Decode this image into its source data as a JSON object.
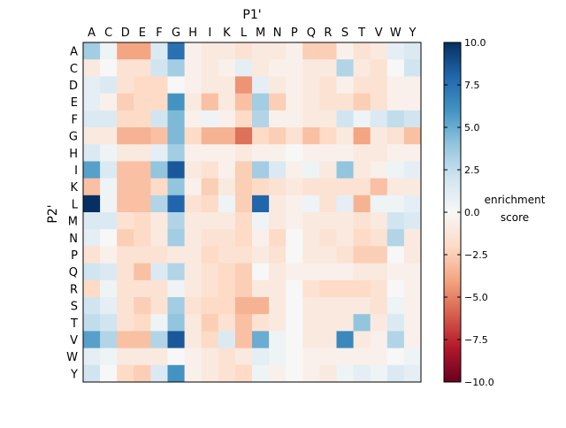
{
  "chart_data": {
    "type": "heatmap",
    "xlabel": "P1'",
    "ylabel": "P2'",
    "x_categories": [
      "A",
      "C",
      "D",
      "E",
      "F",
      "G",
      "H",
      "I",
      "K",
      "L",
      "M",
      "N",
      "P",
      "Q",
      "R",
      "S",
      "T",
      "V",
      "W",
      "Y"
    ],
    "y_categories": [
      "A",
      "C",
      "D",
      "E",
      "F",
      "G",
      "H",
      "I",
      "K",
      "L",
      "M",
      "N",
      "P",
      "Q",
      "R",
      "S",
      "T",
      "V",
      "W",
      "Y"
    ],
    "colorbar": {
      "label_line1": "enrichment",
      "label_line2": "score",
      "range": [
        -10.0,
        10.0
      ],
      "ticks": [
        "10.0",
        "7.5",
        "5.0",
        "2.5",
        "0.0",
        "−2.5",
        "−5.0",
        "−7.5",
        "−10.0"
      ],
      "tick_values": [
        10.0,
        7.5,
        5.0,
        2.5,
        0.0,
        -2.5,
        -5.0,
        -7.5,
        -10.0
      ],
      "colormap": "RdBu"
    },
    "values": [
      [
        3.5,
        0.5,
        -4.0,
        -4.0,
        1.5,
        7.5,
        -0.5,
        -1.0,
        -1.0,
        -1.5,
        -1.0,
        -1.0,
        -0.5,
        -2.5,
        -2.5,
        -0.5,
        -1.5,
        -1.0,
        1.0,
        1.5
      ],
      [
        -1.0,
        0,
        -1.5,
        -1.5,
        2.0,
        3.5,
        -0.5,
        -1.0,
        -0.5,
        1.0,
        -1.0,
        -0.5,
        -0.5,
        -1.0,
        -1.0,
        3.0,
        -1.0,
        -1.5,
        0,
        2.0
      ],
      [
        1.0,
        1.5,
        -1.5,
        -2.0,
        -2.0,
        0,
        -0.5,
        -1.0,
        -1.0,
        -4.5,
        1.0,
        -1.0,
        -0.5,
        -1.0,
        -1.5,
        -0.5,
        -1.5,
        -1.5,
        -0.5,
        -0.5
      ],
      [
        1.0,
        -0.5,
        -2.5,
        -2.0,
        -2.0,
        6.0,
        -1.0,
        -3.0,
        -1.0,
        -3.0,
        3.5,
        -2.5,
        -0.5,
        -1.0,
        -1.5,
        -1.5,
        -2.5,
        -1.5,
        -0.5,
        -0.5
      ],
      [
        1.5,
        1.5,
        -2.0,
        -2.0,
        2.0,
        4.5,
        -0.5,
        0.5,
        -0.5,
        -2.0,
        3.0,
        -0.5,
        -0.5,
        -1.0,
        -1.0,
        2.0,
        0.5,
        1.5,
        2.5,
        2.0
      ],
      [
        -1.0,
        -1.0,
        -3.5,
        -3.5,
        -3.0,
        4.5,
        -2.0,
        -3.5,
        -3.5,
        -5.5,
        -2.0,
        -2.5,
        -1.5,
        -3.0,
        -2.0,
        -1.0,
        -4.0,
        -1.0,
        -1.5,
        -3.0
      ],
      [
        1.5,
        0.5,
        -1.0,
        -1.0,
        1.0,
        3.5,
        -0.5,
        -0.5,
        -0.5,
        -1.0,
        -0.5,
        -0.5,
        0,
        -0.5,
        -0.5,
        -0.5,
        -1.0,
        -1.0,
        -0.5,
        -0.5
      ],
      [
        5.5,
        1.5,
        -3.0,
        -3.0,
        4.0,
        8.5,
        -1.0,
        -1.5,
        -0.5,
        -2.5,
        3.5,
        1.5,
        -0.5,
        0.5,
        -1.0,
        4.0,
        -1.0,
        -0.5,
        0.5,
        1.0
      ],
      [
        -3.0,
        0.5,
        -3.0,
        -3.0,
        -2.0,
        4.0,
        -0.5,
        -2.5,
        -1.0,
        -2.5,
        -2.0,
        -1.5,
        -1.0,
        -1.5,
        -1.5,
        -1.5,
        -1.5,
        -3.0,
        -1.0,
        -1.0
      ],
      [
        10.0,
        0.5,
        -3.0,
        -3.0,
        3.0,
        8.0,
        -1.5,
        -2.0,
        0.5,
        -2.5,
        8.0,
        -1.0,
        -0.5,
        0.5,
        -1.5,
        1.0,
        -3.5,
        0.5,
        0.5,
        1.0
      ],
      [
        1.5,
        1.5,
        -1.5,
        -2.0,
        -1.0,
        3.0,
        -1.0,
        -1.0,
        -1.0,
        -2.0,
        0.5,
        -1.0,
        -0.5,
        -1.0,
        -1.0,
        -1.0,
        -1.5,
        -1.0,
        2.0,
        1.5
      ],
      [
        1.0,
        0,
        -2.5,
        -2.0,
        -1.0,
        3.5,
        -1.0,
        -1.5,
        -1.5,
        -2.0,
        -0.5,
        -2.0,
        0,
        -1.0,
        -1.5,
        -1.0,
        -2.0,
        -1.5,
        3.0,
        -1.0
      ],
      [
        -1.5,
        -0.5,
        -1.5,
        -1.5,
        -1.5,
        -1.0,
        -1.0,
        -2.0,
        -1.5,
        -1.5,
        -1.0,
        -1.5,
        0,
        -1.0,
        -1.0,
        -1.5,
        -2.5,
        -2.5,
        0,
        -1.0
      ],
      [
        2.0,
        1.5,
        -1.5,
        -3.0,
        1.5,
        3.0,
        -1.0,
        -1.5,
        -2.0,
        -2.5,
        0,
        -1.0,
        -0.5,
        -0.5,
        -0.5,
        -0.5,
        -1.0,
        -1.0,
        -0.5,
        -0.5
      ],
      [
        -2.0,
        0.5,
        -1.5,
        -1.5,
        -1.5,
        0.5,
        -1.0,
        -1.5,
        -2.0,
        -2.5,
        -1.0,
        -1.0,
        0,
        -1.5,
        -2.0,
        -2.0,
        -2.0,
        -1.5,
        0,
        -0.5
      ],
      [
        2.0,
        1.0,
        -1.5,
        -2.5,
        -1.5,
        3.5,
        -1.5,
        -2.0,
        -2.0,
        -3.5,
        -3.5,
        -1.0,
        0,
        -1.0,
        -1.0,
        -1.0,
        -1.0,
        -1.5,
        0.5,
        -0.5
      ],
      [
        2.5,
        2.0,
        -1.5,
        -2.0,
        0.5,
        4.0,
        -1.0,
        -2.5,
        -1.5,
        -3.0,
        -1.5,
        -1.0,
        0,
        -1.0,
        -1.0,
        -1.0,
        4.0,
        -1.0,
        1.5,
        -0.5
      ],
      [
        5.5,
        3.0,
        -3.0,
        -3.0,
        3.0,
        8.5,
        -1.0,
        -2.0,
        1.5,
        -3.0,
        5.0,
        0.5,
        0,
        -1.0,
        -1.0,
        6.5,
        -1.0,
        -0.5,
        3.0,
        -0.5
      ],
      [
        1.0,
        0.5,
        -1.0,
        -1.0,
        -1.0,
        0,
        -0.5,
        -1.0,
        -1.5,
        -1.0,
        1.0,
        0.5,
        0,
        -0.5,
        -0.5,
        -0.5,
        -0.5,
        -0.5,
        0,
        0.5
      ],
      [
        2.0,
        0,
        -2.0,
        -2.5,
        1.5,
        6.0,
        -0.5,
        -1.0,
        -1.5,
        -2.0,
        0.5,
        -0.5,
        0,
        -0.5,
        -1.0,
        0.5,
        1.0,
        0.5,
        1.5,
        1.0
      ]
    ]
  }
}
